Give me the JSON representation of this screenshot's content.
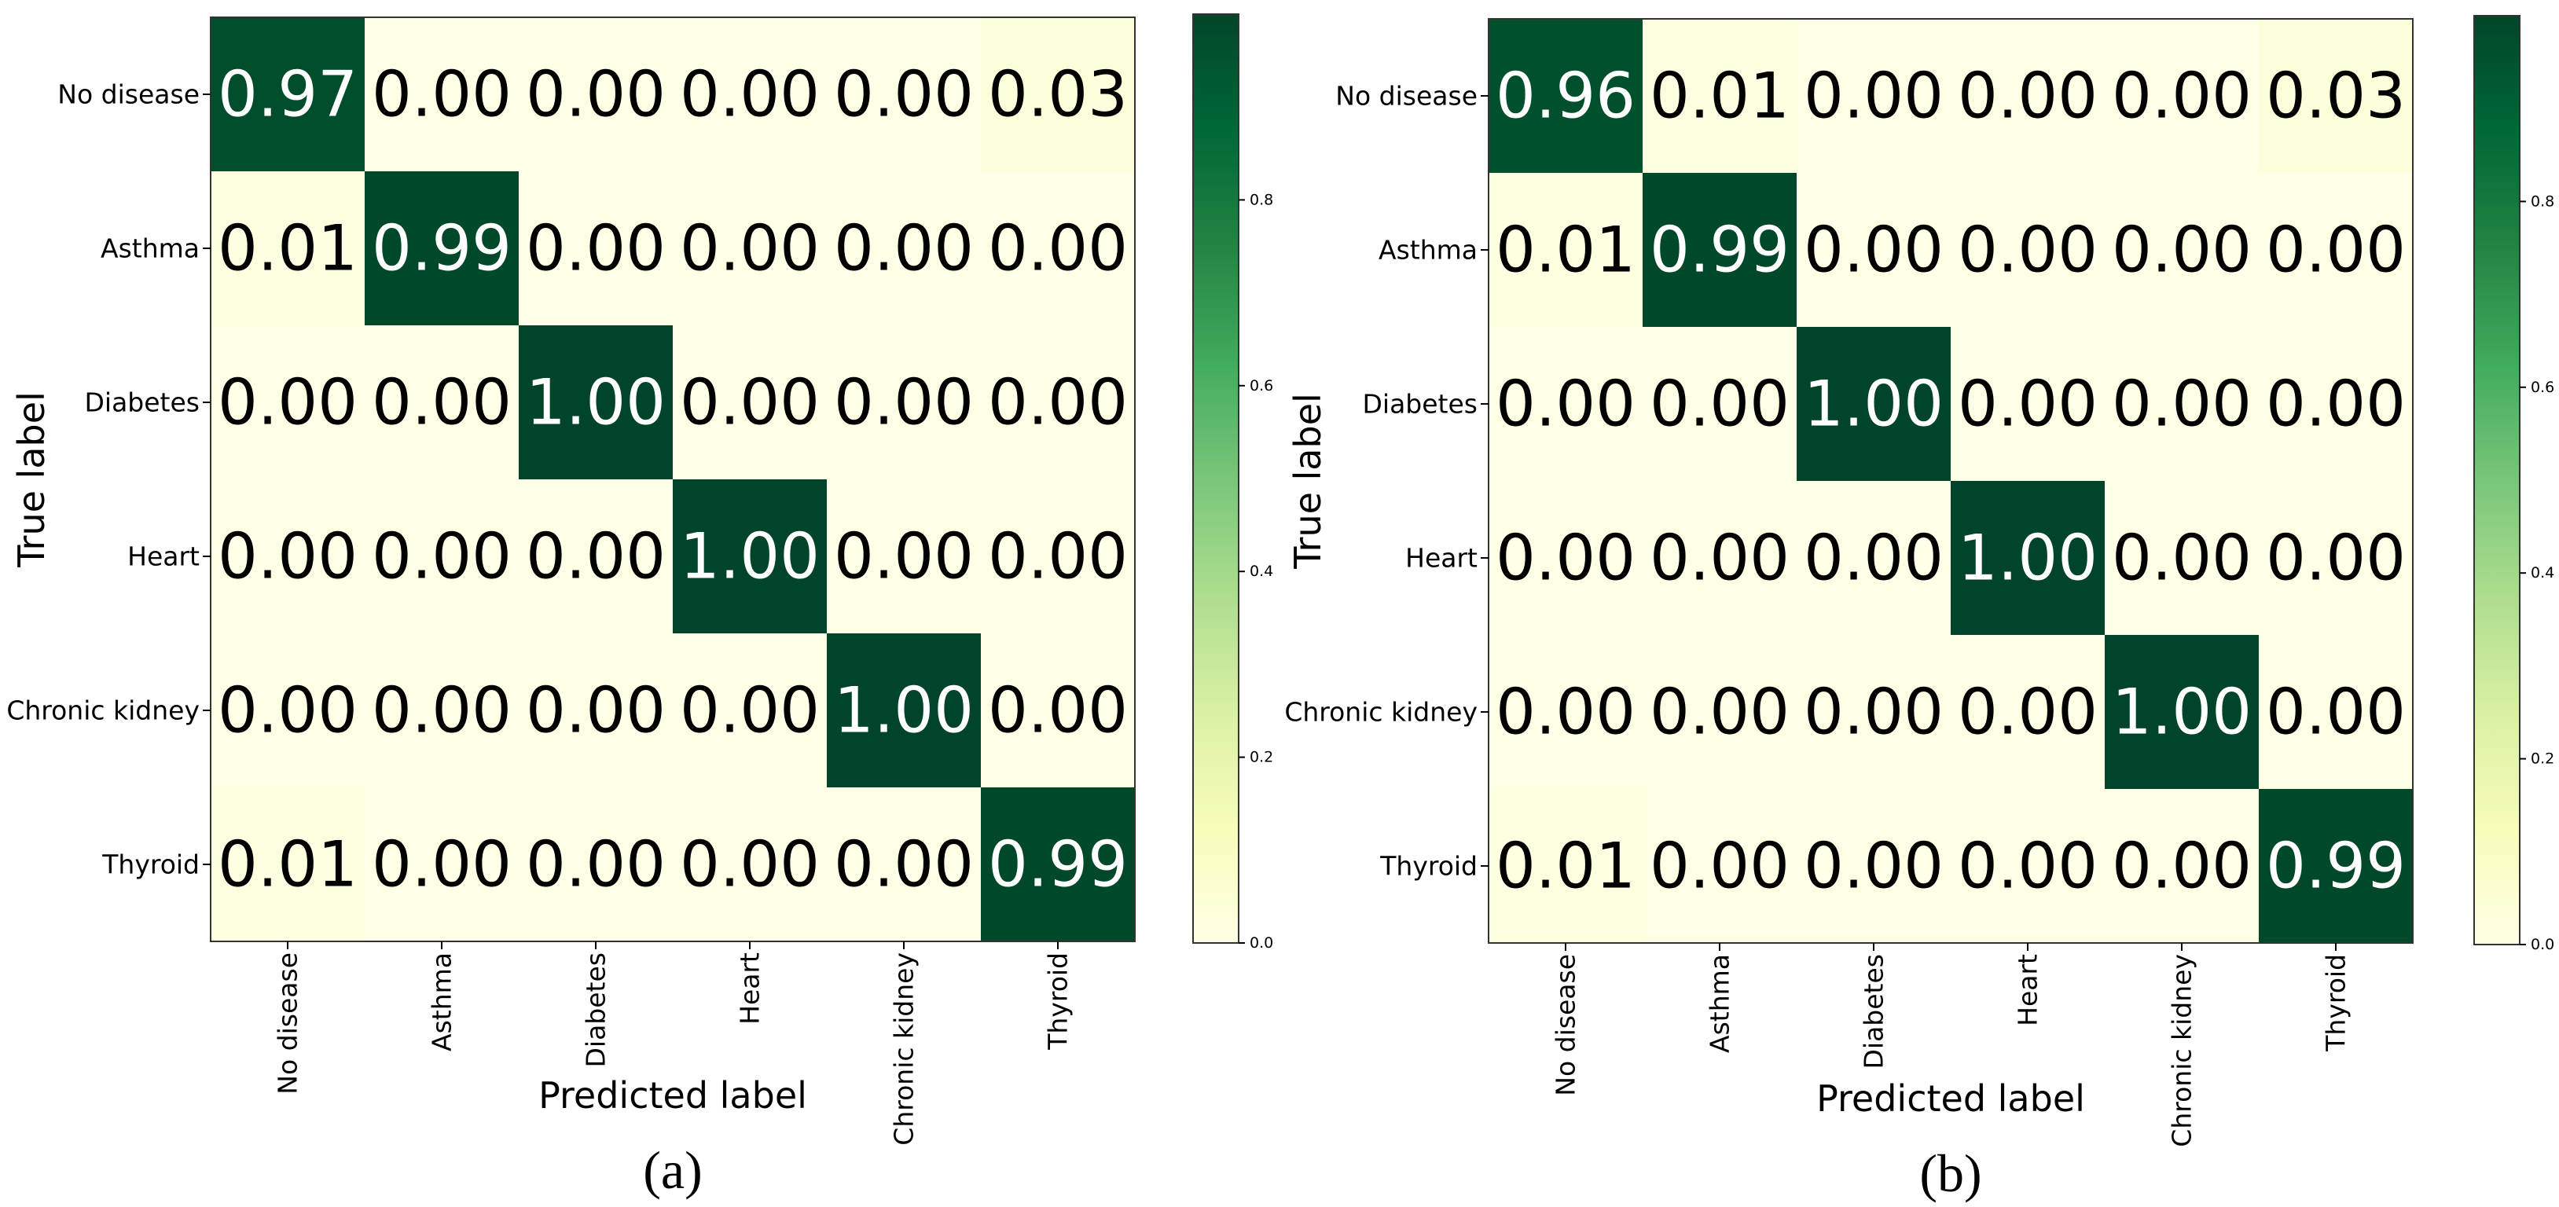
{
  "figure": {
    "colormap": {
      "name": "YlGn",
      "stops": [
        "#ffffe5",
        "#f7fcb9",
        "#d9f0a3",
        "#addd8e",
        "#78c679",
        "#41ab5d",
        "#238443",
        "#006837",
        "#004529"
      ]
    }
  },
  "chart_data": [
    {
      "type": "heatmap",
      "panel_label": "(a)",
      "title": "",
      "xlabel": "Predicted label",
      "ylabel": "True label",
      "x_categories": [
        "No disease",
        "Asthma",
        "Diabetes",
        "Heart",
        "Chronic kidney",
        "Thyroid"
      ],
      "y_categories": [
        "No disease",
        "Asthma",
        "Diabetes",
        "Heart",
        "Chronic kidney",
        "Thyroid"
      ],
      "values": [
        [
          0.97,
          0.0,
          0.0,
          0.0,
          0.0,
          0.03
        ],
        [
          0.01,
          0.99,
          0.0,
          0.0,
          0.0,
          0.0
        ],
        [
          0.0,
          0.0,
          1.0,
          0.0,
          0.0,
          0.0
        ],
        [
          0.0,
          0.0,
          0.0,
          1.0,
          0.0,
          0.0
        ],
        [
          0.0,
          0.0,
          0.0,
          0.0,
          1.0,
          0.0
        ],
        [
          0.01,
          0.0,
          0.0,
          0.0,
          0.0,
          0.99
        ]
      ],
      "number_format": "2 decimals",
      "colorbar": {
        "range": [
          0,
          1
        ],
        "ticks": [
          0.0,
          0.2,
          0.4,
          0.6,
          0.8
        ]
      }
    },
    {
      "type": "heatmap",
      "panel_label": "(b)",
      "title": "",
      "xlabel": "Predicted label",
      "ylabel": "True label",
      "x_categories": [
        "No disease",
        "Asthma",
        "Diabetes",
        "Heart",
        "Chronic kidney",
        "Thyroid"
      ],
      "y_categories": [
        "No disease",
        "Asthma",
        "Diabetes",
        "Heart",
        "Chronic kidney",
        "Thyroid"
      ],
      "values": [
        [
          0.96,
          0.01,
          0.0,
          0.0,
          0.0,
          0.03
        ],
        [
          0.01,
          0.99,
          0.0,
          0.0,
          0.0,
          0.0
        ],
        [
          0.0,
          0.0,
          1.0,
          0.0,
          0.0,
          0.0
        ],
        [
          0.0,
          0.0,
          0.0,
          1.0,
          0.0,
          0.0
        ],
        [
          0.0,
          0.0,
          0.0,
          0.0,
          1.0,
          0.0
        ],
        [
          0.01,
          0.0,
          0.0,
          0.0,
          0.0,
          0.99
        ]
      ],
      "number_format": "2 decimals",
      "colorbar": {
        "range": [
          0,
          1
        ],
        "ticks": [
          0.0,
          0.2,
          0.4,
          0.6,
          0.8
        ]
      }
    }
  ]
}
